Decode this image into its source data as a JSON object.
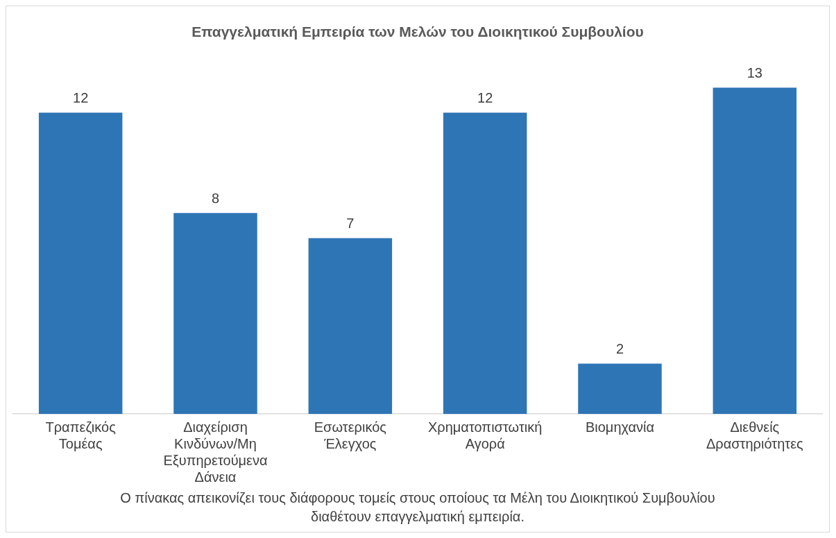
{
  "chart_data": {
    "type": "bar",
    "title": "Επαγγελματική Εμπειρία των Μελών του Διοικητικού Συμβουλίου",
    "categories": [
      "Τραπεζικός Τομέας",
      "Διαχείριση Κινδύνων/Μη Εξυπηρετούμενα Δάνεια",
      "Εσωτερικός Έλεγχος",
      "Χρηματοπιστωτική Αγορά",
      "Βιομηχανία",
      "Διεθνείς Δραστηριότητες"
    ],
    "values": [
      12,
      8,
      7,
      12,
      2,
      13
    ],
    "color": "#2e75b6",
    "data_labels": true,
    "grid": false,
    "legend": false,
    "annotations": [
      "Ο πίνακας απεικονίζει τους διάφορους τομείς στους οποίους τα Μέλη του Διοικητικού Συμβουλίου διαθέτουν επαγγελματική εμπειρία."
    ]
  }
}
